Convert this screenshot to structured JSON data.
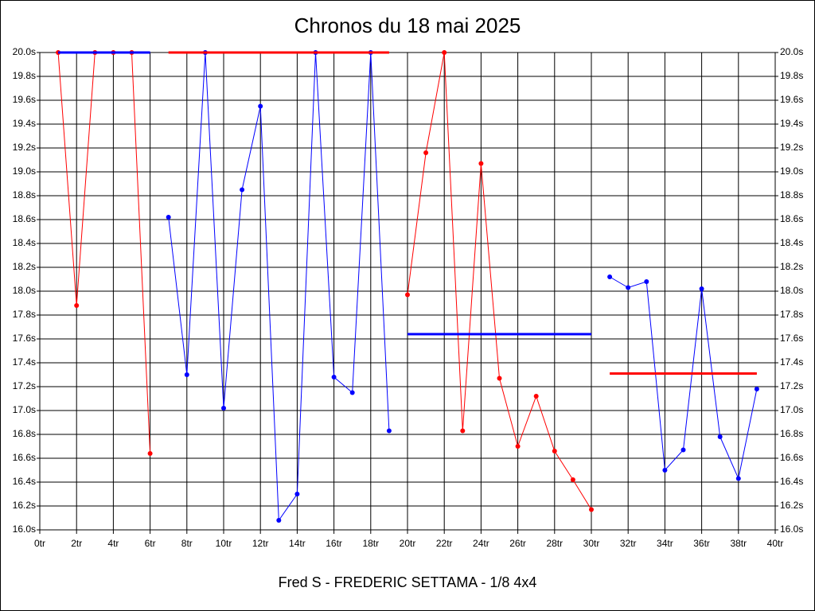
{
  "chart_data": {
    "type": "line",
    "title": "Chronos du 18 mai 2025",
    "xlabel": "Fred S - FREDERIC SETTAMA - 1/8 4x4",
    "xlim": [
      0,
      40
    ],
    "ylim": [
      16.0,
      20.0
    ],
    "grid": true,
    "xticks": [
      {
        "value": 0,
        "label": "0tr"
      },
      {
        "value": 2,
        "label": "2tr"
      },
      {
        "value": 4,
        "label": "4tr"
      },
      {
        "value": 6,
        "label": "6tr"
      },
      {
        "value": 8,
        "label": "8tr"
      },
      {
        "value": 10,
        "label": "10tr"
      },
      {
        "value": 12,
        "label": "12tr"
      },
      {
        "value": 14,
        "label": "14tr"
      },
      {
        "value": 16,
        "label": "16tr"
      },
      {
        "value": 18,
        "label": "18tr"
      },
      {
        "value": 20,
        "label": "20tr"
      },
      {
        "value": 22,
        "label": "22tr"
      },
      {
        "value": 24,
        "label": "24tr"
      },
      {
        "value": 26,
        "label": "26tr"
      },
      {
        "value": 28,
        "label": "28tr"
      },
      {
        "value": 30,
        "label": "30tr"
      },
      {
        "value": 32,
        "label": "32tr"
      },
      {
        "value": 34,
        "label": "34tr"
      },
      {
        "value": 36,
        "label": "36tr"
      },
      {
        "value": 38,
        "label": "38tr"
      },
      {
        "value": 40,
        "label": "40tr"
      }
    ],
    "yticks": [
      {
        "value": 16.0,
        "label": "16.0s"
      },
      {
        "value": 16.2,
        "label": "16.2s"
      },
      {
        "value": 16.4,
        "label": "16.4s"
      },
      {
        "value": 16.6,
        "label": "16.6s"
      },
      {
        "value": 16.8,
        "label": "16.8s"
      },
      {
        "value": 17.0,
        "label": "17.0s"
      },
      {
        "value": 17.2,
        "label": "17.2s"
      },
      {
        "value": 17.4,
        "label": "17.4s"
      },
      {
        "value": 17.6,
        "label": "17.6s"
      },
      {
        "value": 17.8,
        "label": "17.8s"
      },
      {
        "value": 18.0,
        "label": "18.0s"
      },
      {
        "value": 18.2,
        "label": "18.2s"
      },
      {
        "value": 18.4,
        "label": "18.4s"
      },
      {
        "value": 18.6,
        "label": "18.6s"
      },
      {
        "value": 18.8,
        "label": "18.8s"
      },
      {
        "value": 19.0,
        "label": "19.0s"
      },
      {
        "value": 19.2,
        "label": "19.2s"
      },
      {
        "value": 19.4,
        "label": "19.4s"
      },
      {
        "value": 19.6,
        "label": "19.6s"
      },
      {
        "value": 19.8,
        "label": "19.8s"
      },
      {
        "value": 20.0,
        "label": "20.0s"
      }
    ],
    "series": [
      {
        "color": "#ff0000",
        "markers": true,
        "width": 1,
        "x": [
          1,
          2,
          3,
          4,
          5,
          6
        ],
        "values": [
          20.0,
          17.88,
          20.0,
          20.0,
          20.0,
          16.64
        ]
      },
      {
        "color": "#0000ff",
        "markers": true,
        "width": 1,
        "x": [
          7,
          8,
          9,
          10,
          11,
          12,
          13,
          14,
          15,
          16,
          17,
          18,
          19
        ],
        "values": [
          18.62,
          17.3,
          20.0,
          17.02,
          18.85,
          19.55,
          16.08,
          16.3,
          20.0,
          17.28,
          17.15,
          20.0,
          16.83
        ]
      },
      {
        "color": "#ff0000",
        "markers": true,
        "width": 1,
        "x": [
          20,
          21,
          22,
          23,
          24,
          25,
          26,
          27,
          28,
          29,
          30
        ],
        "values": [
          17.97,
          19.16,
          20.0,
          16.83,
          19.07,
          17.27,
          16.7,
          17.12,
          16.66,
          16.42,
          16.17
        ]
      },
      {
        "color": "#0000ff",
        "markers": true,
        "width": 1,
        "x": [
          31,
          32,
          33,
          34,
          35,
          36,
          37,
          38,
          39
        ],
        "values": [
          18.12,
          18.03,
          18.08,
          16.5,
          16.67,
          18.02,
          16.78,
          16.43,
          17.18
        ]
      },
      {
        "color": "#0000ff",
        "markers": false,
        "width": 3,
        "x": [
          1,
          6
        ],
        "values": [
          20.0,
          20.0
        ]
      },
      {
        "color": "#ff0000",
        "markers": false,
        "width": 3,
        "x": [
          7,
          19
        ],
        "values": [
          20.0,
          20.0
        ]
      },
      {
        "color": "#0000ff",
        "markers": false,
        "width": 3,
        "x": [
          20,
          30
        ],
        "values": [
          17.64,
          17.64
        ]
      },
      {
        "color": "#ff0000",
        "markers": false,
        "width": 3,
        "x": [
          31,
          39
        ],
        "values": [
          17.31,
          17.31
        ]
      }
    ]
  }
}
